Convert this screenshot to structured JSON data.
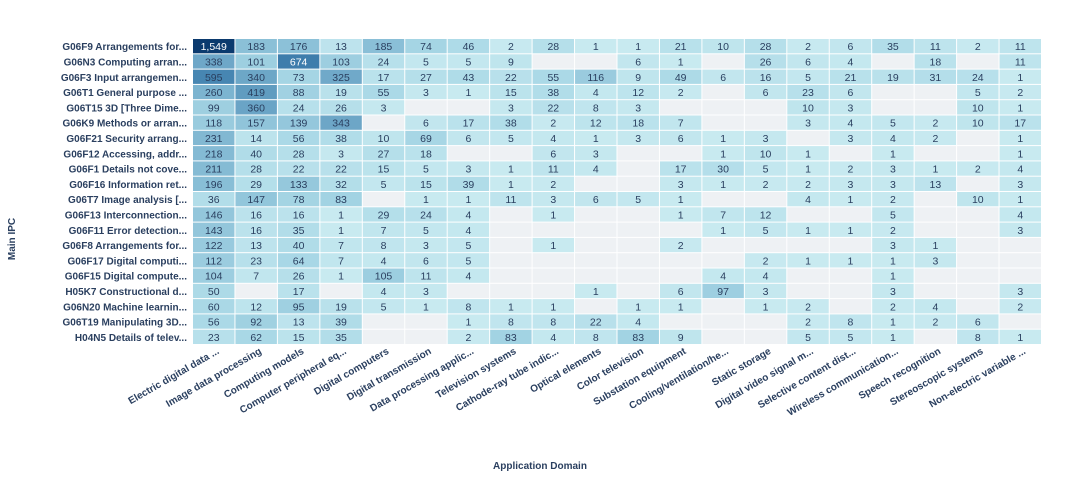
{
  "chart_data": {
    "type": "heatmap",
    "xlabel": "Application Domain",
    "ylabel": "Main IPC",
    "columns": [
      "Electric digital data ...",
      "Image data processing",
      "Computing models",
      "Computer peripheral eq...",
      "Digital computers",
      "Digital transmission",
      "Data processing applic...",
      "Television systems",
      "Cathode-ray tube indic...",
      "Optical elements",
      "Color television",
      "Substation equipment",
      "Cooling/ventilation/he...",
      "Static storage",
      "Digital video signal m...",
      "Selective content dist...",
      "Wireless communication...",
      "Speech recognition",
      "Stereoscopic systems",
      "Non-electric variable ..."
    ],
    "rows": [
      "G06F9 Arrangements for...",
      "G06N3 Computing arran...",
      "G06F3 Input arrangemen...",
      "G06T1 General purpose ...",
      "G06T15 3D [Three Dime...",
      "G06K9 Methods or arran...",
      "G06F21 Security arrang...",
      "G06F12 Accessing, addr...",
      "G06F1 Details not cove...",
      "G06F16 Information ret...",
      "G06T7 Image analysis [...",
      "G06F13 Interconnection...",
      "G06F11 Error detection...",
      "G06F8 Arrangements for...",
      "G06F17 Digital computi...",
      "G06F15 Digital compute...",
      "H05K7 Constructional d...",
      "G06N20 Machine learnin...",
      "G06T19 Manipulating 3D...",
      "H04N5 Details of telev..."
    ],
    "values": [
      [
        1549,
        183,
        176,
        13,
        185,
        74,
        46,
        2,
        28,
        1,
        1,
        21,
        10,
        28,
        2,
        6,
        35,
        11,
        2,
        11
      ],
      [
        338,
        101,
        674,
        103,
        24,
        5,
        5,
        9,
        null,
        null,
        6,
        1,
        null,
        26,
        6,
        4,
        null,
        18,
        null,
        11
      ],
      [
        595,
        340,
        73,
        325,
        17,
        27,
        43,
        22,
        55,
        116,
        9,
        49,
        6,
        16,
        5,
        21,
        19,
        31,
        24,
        1
      ],
      [
        260,
        419,
        88,
        19,
        55,
        3,
        1,
        15,
        38,
        4,
        12,
        2,
        null,
        6,
        23,
        6,
        null,
        null,
        5,
        2
      ],
      [
        99,
        360,
        24,
        26,
        3,
        null,
        null,
        3,
        22,
        8,
        3,
        null,
        null,
        null,
        10,
        3,
        null,
        null,
        10,
        1
      ],
      [
        118,
        157,
        139,
        343,
        null,
        6,
        17,
        38,
        2,
        12,
        18,
        7,
        null,
        null,
        3,
        4,
        5,
        2,
        10,
        17
      ],
      [
        231,
        14,
        56,
        38,
        10,
        69,
        6,
        5,
        4,
        1,
        3,
        6,
        1,
        3,
        null,
        3,
        4,
        2,
        null,
        1
      ],
      [
        218,
        40,
        28,
        3,
        27,
        18,
        null,
        null,
        6,
        3,
        null,
        null,
        1,
        10,
        1,
        null,
        1,
        null,
        null,
        1
      ],
      [
        211,
        28,
        22,
        22,
        15,
        5,
        3,
        1,
        11,
        4,
        null,
        17,
        30,
        5,
        1,
        2,
        3,
        1,
        2,
        4
      ],
      [
        196,
        29,
        133,
        32,
        5,
        15,
        39,
        1,
        2,
        null,
        null,
        3,
        1,
        2,
        2,
        3,
        3,
        13,
        null,
        3
      ],
      [
        36,
        147,
        78,
        83,
        null,
        1,
        1,
        11,
        3,
        6,
        5,
        1,
        null,
        null,
        4,
        1,
        2,
        null,
        10,
        1
      ],
      [
        146,
        16,
        16,
        1,
        29,
        24,
        4,
        null,
        1,
        null,
        null,
        1,
        7,
        12,
        null,
        null,
        5,
        null,
        null,
        4
      ],
      [
        143,
        16,
        35,
        1,
        7,
        5,
        4,
        null,
        null,
        null,
        null,
        null,
        1,
        5,
        1,
        1,
        2,
        null,
        null,
        3
      ],
      [
        122,
        13,
        40,
        7,
        8,
        3,
        5,
        null,
        1,
        null,
        null,
        2,
        null,
        null,
        null,
        null,
        3,
        1,
        null,
        null
      ],
      [
        112,
        23,
        64,
        7,
        4,
        6,
        5,
        null,
        null,
        null,
        null,
        null,
        null,
        2,
        1,
        1,
        1,
        3,
        null,
        null
      ],
      [
        104,
        7,
        26,
        1,
        105,
        11,
        4,
        null,
        null,
        null,
        null,
        null,
        4,
        4,
        null,
        null,
        1,
        null,
        null,
        null
      ],
      [
        50,
        null,
        17,
        null,
        4,
        3,
        null,
        null,
        null,
        1,
        null,
        6,
        97,
        3,
        null,
        null,
        3,
        null,
        null,
        3
      ],
      [
        60,
        12,
        95,
        19,
        5,
        1,
        8,
        1,
        1,
        null,
        1,
        1,
        null,
        1,
        2,
        null,
        2,
        4,
        null,
        2
      ],
      [
        56,
        92,
        13,
        39,
        null,
        null,
        1,
        8,
        8,
        22,
        4,
        null,
        null,
        null,
        2,
        8,
        1,
        2,
        6,
        null
      ],
      [
        23,
        62,
        15,
        35,
        null,
        null,
        2,
        83,
        4,
        8,
        83,
        9,
        null,
        null,
        5,
        5,
        1,
        null,
        8,
        1
      ]
    ],
    "value_labels": [
      [
        "1,549",
        "183",
        "176",
        "13",
        "185",
        "74",
        "46",
        "2",
        "28",
        "1",
        "1",
        "21",
        "10",
        "28",
        "2",
        "6",
        "35",
        "11",
        "2",
        "11"
      ],
      [
        "338",
        "101",
        "674",
        "103",
        "24",
        "5",
        "5",
        "9",
        "",
        "",
        "6",
        "1",
        "",
        "26",
        "6",
        "4",
        "",
        "18",
        "",
        "11"
      ],
      [
        "595",
        "340",
        "73",
        "325",
        "17",
        "27",
        "43",
        "22",
        "55",
        "116",
        "9",
        "49",
        "6",
        "16",
        "5",
        "21",
        "19",
        "31",
        "24",
        "1"
      ],
      [
        "260",
        "419",
        "88",
        "19",
        "55",
        "3",
        "1",
        "15",
        "38",
        "4",
        "12",
        "2",
        "",
        "6",
        "23",
        "6",
        "",
        "",
        "5",
        "2"
      ],
      [
        "99",
        "360",
        "24",
        "26",
        "3",
        "",
        "",
        "3",
        "22",
        "8",
        "3",
        "",
        "",
        "",
        "10",
        "3",
        "",
        "",
        "10",
        "1"
      ],
      [
        "118",
        "157",
        "139",
        "343",
        "",
        "6",
        "17",
        "38",
        "2",
        "12",
        "18",
        "7",
        "",
        "",
        "3",
        "4",
        "5",
        "2",
        "10",
        "17"
      ],
      [
        "231",
        "14",
        "56",
        "38",
        "10",
        "69",
        "6",
        "5",
        "4",
        "1",
        "3",
        "6",
        "1",
        "3",
        "",
        "3",
        "4",
        "2",
        "",
        "1"
      ],
      [
        "218",
        "40",
        "28",
        "3",
        "27",
        "18",
        "",
        "",
        "6",
        "3",
        "",
        "",
        "1",
        "10",
        "1",
        "",
        "1",
        "",
        "",
        "1"
      ],
      [
        "211",
        "28",
        "22",
        "22",
        "15",
        "5",
        "3",
        "1",
        "11",
        "4",
        "",
        "17",
        "30",
        "5",
        "1",
        "2",
        "3",
        "1",
        "2",
        "4"
      ],
      [
        "196",
        "29",
        "133",
        "32",
        "5",
        "15",
        "39",
        "1",
        "2",
        "",
        "",
        "3",
        "1",
        "2",
        "2",
        "3",
        "3",
        "13",
        "",
        "3"
      ],
      [
        "36",
        "147",
        "78",
        "83",
        "",
        "1",
        "1",
        "11",
        "3",
        "6",
        "5",
        "1",
        "",
        "",
        "4",
        "1",
        "2",
        "",
        "10",
        "1"
      ],
      [
        "146",
        "16",
        "16",
        "1",
        "29",
        "24",
        "4",
        "",
        "1",
        "",
        "",
        "1",
        "7",
        "12",
        "",
        "",
        "5",
        "",
        "",
        "4"
      ],
      [
        "143",
        "16",
        "35",
        "1",
        "7",
        "5",
        "4",
        "",
        "",
        "",
        "",
        "",
        "1",
        "5",
        "1",
        "1",
        "2",
        "",
        "",
        "3"
      ],
      [
        "122",
        "13",
        "40",
        "7",
        "8",
        "3",
        "5",
        "",
        "1",
        "",
        "",
        "2",
        "",
        "",
        "",
        "",
        "3",
        "1",
        "",
        ""
      ],
      [
        "112",
        "23",
        "64",
        "7",
        "4",
        "6",
        "5",
        "",
        "",
        "",
        "",
        "",
        "",
        "2",
        "1",
        "1",
        "1",
        "3",
        "",
        ""
      ],
      [
        "104",
        "7",
        "26",
        "1",
        "105",
        "11",
        "4",
        "",
        "",
        "",
        "",
        "",
        "4",
        "4",
        "",
        "",
        "1",
        "",
        "",
        ""
      ],
      [
        "50",
        "",
        "17",
        "",
        "4",
        "3",
        "",
        "",
        "",
        "1",
        "",
        "6",
        "97",
        "3",
        "",
        "",
        "3",
        "",
        "",
        "3"
      ],
      [
        "60",
        "12",
        "95",
        "19",
        "5",
        "1",
        "8",
        "1",
        "1",
        "",
        "1",
        "1",
        "",
        "1",
        "2",
        "",
        "2",
        "4",
        "",
        "2"
      ],
      [
        "56",
        "92",
        "13",
        "39",
        "",
        "",
        "1",
        "8",
        "8",
        "22",
        "4",
        "",
        "",
        "",
        "2",
        "8",
        "1",
        "2",
        "6",
        ""
      ],
      [
        "23",
        "62",
        "15",
        "35",
        "",
        "",
        "2",
        "83",
        "4",
        "8",
        "83",
        "9",
        "",
        "",
        "5",
        "5",
        "1",
        "",
        "8",
        "1"
      ]
    ],
    "colorscale": [
      "#cdedf2",
      "#a9d8e6",
      "#7fb6d1",
      "#4b8ab5",
      "#1f5d96",
      "#0b3a6e"
    ],
    "missing_color": "#eef1f4",
    "legend": "none"
  }
}
